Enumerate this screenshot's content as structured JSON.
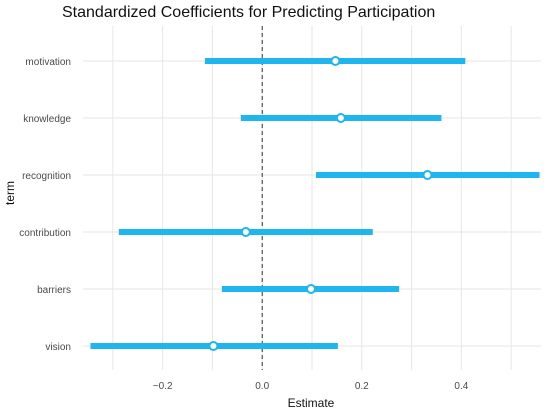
{
  "chart_data": {
    "type": "forest",
    "title": "Standardized Coefficients for Predicting Participation",
    "xlabel": "Estimate",
    "ylabel": "term",
    "xlim": [
      -0.36,
      0.56
    ],
    "x_ticks": [
      -0.2,
      0.0,
      0.2,
      0.4
    ],
    "x_tick_labels": [
      "−0.2",
      "0.0",
      "0.2",
      "0.4"
    ],
    "reference_line": 0,
    "grid": true,
    "legend": "none",
    "colors": {
      "bar": "#1fb5ee",
      "point_fill": "#ffffff",
      "point_stroke": "#1fb5ee",
      "grid": "#e6e6e6",
      "ref_line": "#333333"
    },
    "terms": [
      "motivation",
      "knowledge",
      "recognition",
      "contribution",
      "barriers",
      "vision"
    ],
    "estimates": [
      0.147,
      0.158,
      0.332,
      -0.033,
      0.098,
      -0.098
    ],
    "lower": [
      -0.115,
      -0.043,
      0.108,
      -0.288,
      -0.081,
      -0.345
    ],
    "upper": [
      0.408,
      0.36,
      0.557,
      0.222,
      0.275,
      0.152
    ]
  }
}
